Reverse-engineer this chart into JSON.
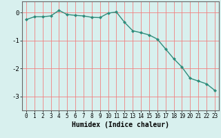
{
  "x": [
    0,
    1,
    2,
    3,
    4,
    5,
    6,
    7,
    8,
    9,
    10,
    11,
    12,
    13,
    14,
    15,
    16,
    17,
    18,
    19,
    20,
    21,
    22,
    23
  ],
  "y": [
    -0.25,
    -0.15,
    -0.15,
    -0.12,
    0.08,
    -0.07,
    -0.1,
    -0.12,
    -0.17,
    -0.18,
    -0.02,
    0.02,
    -0.35,
    -0.65,
    -0.72,
    -0.8,
    -0.95,
    -1.3,
    -1.65,
    -1.95,
    -2.35,
    -2.45,
    -2.55,
    -2.78
  ],
  "line_color": "#2e8b7a",
  "marker": "D",
  "markersize": 2.0,
  "linewidth": 1.0,
  "xlabel": "Humidex (Indice chaleur)",
  "xlabel_fontsize": 7,
  "xlabel_fontweight": "bold",
  "ylim": [
    -3.5,
    0.4
  ],
  "xlim": [
    -0.5,
    23.5
  ],
  "yticks": [
    -3,
    -2,
    -1,
    0
  ],
  "xtick_labels": [
    "0",
    "1",
    "2",
    "3",
    "4",
    "5",
    "6",
    "7",
    "8",
    "9",
    "10",
    "11",
    "12",
    "13",
    "14",
    "15",
    "16",
    "17",
    "18",
    "19",
    "20",
    "21",
    "22",
    "23"
  ],
  "bg_color": "#d8f0ee",
  "grid_color_h": "#f08080",
  "grid_color_v": "#f08080",
  "grid_linewidth": 0.6,
  "tick_fontsize": 5.5,
  "spine_color": "#666666"
}
